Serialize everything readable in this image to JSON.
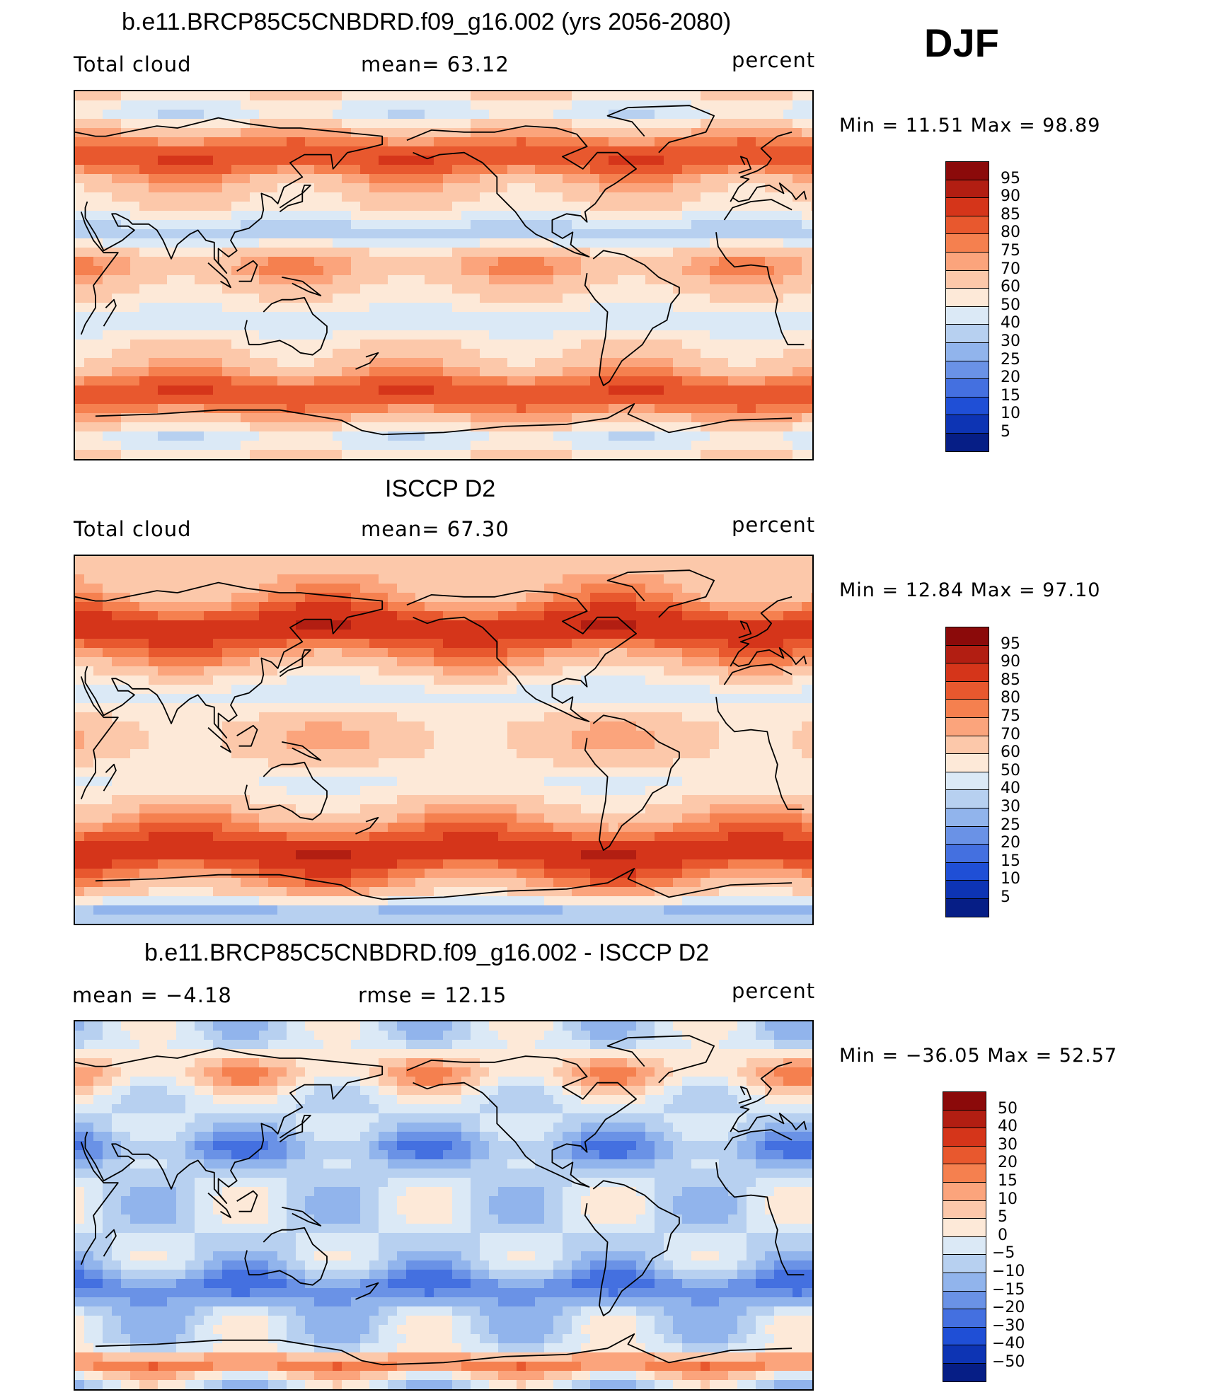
{
  "season": "DJF",
  "panels": [
    {
      "title": "b.e11.BRCP85C5CNBDRD.f09_g16.002 (yrs 2056-2080)",
      "left_label": "Total cloud",
      "center_label": "mean=   63.12",
      "right_label": "percent",
      "minmax": "Min =    11.51 Max =    98.89",
      "kind": "model",
      "colorbar": {
        "colors": [
          "#8b0a0a",
          "#b21e12",
          "#d5351a",
          "#e8582e",
          "#f5804f",
          "#fba47c",
          "#fcc8aa",
          "#fde9d8",
          "#dbe9f6",
          "#b7d0f0",
          "#91b4ec",
          "#6a92e6",
          "#4470e0",
          "#1f4fd6",
          "#0d34b4",
          "#061e86"
        ],
        "labels": [
          "95",
          "90",
          "85",
          "80",
          "75",
          "70",
          "60",
          "50",
          "40",
          "30",
          "25",
          "20",
          "15",
          "10",
          "5"
        ]
      }
    },
    {
      "title": "ISCCP D2",
      "left_label": "Total cloud",
      "center_label": "mean=   67.30",
      "right_label": "percent",
      "minmax": "Min =    12.84 Max =    97.10",
      "kind": "obs",
      "colorbar": {
        "colors": [
          "#8b0a0a",
          "#b21e12",
          "#d5351a",
          "#e8582e",
          "#f5804f",
          "#fba47c",
          "#fcc8aa",
          "#fde9d8",
          "#dbe9f6",
          "#b7d0f0",
          "#91b4ec",
          "#6a92e6",
          "#4470e0",
          "#1f4fd6",
          "#0d34b4",
          "#061e86"
        ],
        "labels": [
          "95",
          "90",
          "85",
          "80",
          "75",
          "70",
          "60",
          "50",
          "40",
          "30",
          "25",
          "20",
          "15",
          "10",
          "5"
        ]
      }
    },
    {
      "title": "b.e11.BRCP85C5CNBDRD.f09_g16.002 - ISCCP D2",
      "left_label": "mean =   −4.18",
      "center_label": "rmse =   12.15",
      "right_label": "percent",
      "minmax": "Min = −36.05 Max =   52.57",
      "kind": "diff",
      "colorbar": {
        "colors": [
          "#8b0a0a",
          "#b21e12",
          "#d5351a",
          "#e8582e",
          "#f5804f",
          "#fba47c",
          "#fcc8aa",
          "#fde9d8",
          "#dbe9f6",
          "#b7d0f0",
          "#91b4ec",
          "#6a92e6",
          "#4470e0",
          "#1f4fd6",
          "#0d34b4",
          "#061e86"
        ],
        "labels": [
          "50",
          "40",
          "30",
          "20",
          "15",
          "10",
          "5",
          "0",
          "−5",
          "−10",
          "−15",
          "−20",
          "−30",
          "−40",
          "−50"
        ]
      }
    }
  ]
}
